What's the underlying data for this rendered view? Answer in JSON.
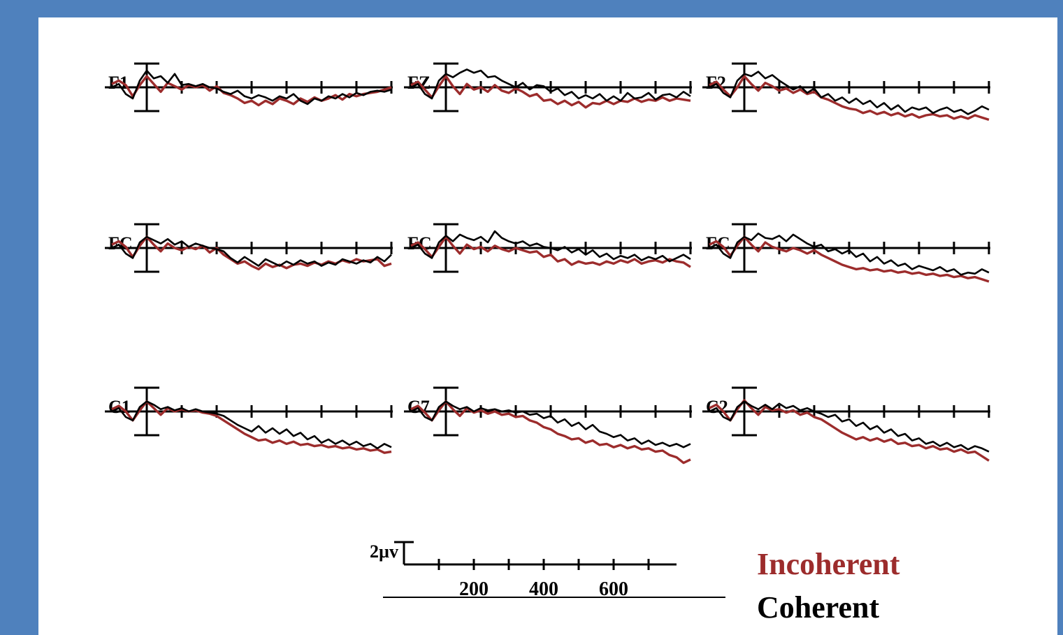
{
  "chart_data": {
    "type": "line",
    "xlim": [
      -100,
      700
    ],
    "x_ticks": [
      100,
      200,
      300,
      400,
      500,
      600,
      700
    ],
    "scale_bar": {
      "label": "2µv",
      "value_uv": 2,
      "tick_labels": [
        "200",
        "400",
        "600"
      ]
    },
    "colors": {
      "Incoherent": "#9c2c2c",
      "Coherent": "#000000"
    },
    "legend": {
      "position": "bottom-right",
      "entries": [
        "Incoherent",
        "Coherent"
      ]
    },
    "x": [
      -100,
      -80,
      -60,
      -40,
      -20,
      0,
      20,
      40,
      60,
      80,
      100,
      120,
      140,
      160,
      180,
      200,
      220,
      240,
      260,
      280,
      300,
      320,
      340,
      360,
      380,
      400,
      420,
      440,
      460,
      480,
      500,
      520,
      540,
      560,
      580,
      600,
      620,
      640,
      660,
      680,
      700
    ],
    "panels": [
      {
        "label": "F1",
        "series": [
          {
            "name": "Coherent",
            "values": [
              0.0,
              0.3,
              -0.6,
              -1.0,
              0.6,
              1.5,
              0.8,
              1.0,
              0.4,
              1.2,
              0.2,
              0.3,
              0.1,
              0.3,
              0.0,
              -0.1,
              -0.4,
              -0.6,
              -0.3,
              -0.8,
              -1.0,
              -0.7,
              -0.9,
              -1.2,
              -0.8,
              -1.0,
              -0.6,
              -1.2,
              -1.5,
              -1.0,
              -1.2,
              -0.8,
              -1.0,
              -0.6,
              -0.9,
              -0.5,
              -0.7,
              -0.4,
              -0.3,
              -0.4,
              -0.2
            ]
          },
          {
            "name": "Incoherent",
            "values": [
              0.3,
              0.6,
              0.2,
              -0.8,
              0.2,
              1.0,
              0.3,
              -0.4,
              0.4,
              0.1,
              -0.2,
              0.2,
              0.0,
              0.2,
              -0.3,
              0.1,
              -0.5,
              -0.7,
              -1.0,
              -1.4,
              -1.2,
              -1.6,
              -1.2,
              -1.5,
              -1.0,
              -1.2,
              -1.5,
              -1.0,
              -1.3,
              -0.9,
              -1.2,
              -1.0,
              -0.7,
              -1.1,
              -0.6,
              -0.8,
              -0.6,
              -0.5,
              -0.4,
              -0.2,
              0.0
            ]
          }
        ]
      },
      {
        "label": "FZ",
        "series": [
          {
            "name": "Coherent",
            "values": [
              0.0,
              0.3,
              -0.6,
              -1.0,
              0.6,
              1.2,
              0.9,
              1.3,
              1.6,
              1.3,
              1.5,
              0.9,
              1.0,
              0.6,
              0.3,
              0.0,
              0.4,
              -0.2,
              0.2,
              0.1,
              -0.4,
              -0.1,
              -0.7,
              -0.4,
              -1.0,
              -0.7,
              -1.0,
              -0.6,
              -1.2,
              -0.8,
              -1.2,
              -0.5,
              -1.0,
              -0.9,
              -0.5,
              -1.1,
              -0.7,
              -0.6,
              -0.9,
              -0.4,
              -0.8
            ]
          },
          {
            "name": "Incoherent",
            "values": [
              0.2,
              0.5,
              -0.2,
              -0.9,
              0.1,
              1.0,
              0.1,
              -0.6,
              0.3,
              -0.2,
              0.0,
              -0.4,
              0.2,
              -0.3,
              -0.5,
              -0.1,
              -0.4,
              -0.8,
              -0.6,
              -1.2,
              -1.1,
              -1.5,
              -1.2,
              -1.6,
              -1.3,
              -1.8,
              -1.4,
              -1.5,
              -1.2,
              -1.5,
              -1.2,
              -1.3,
              -1.0,
              -1.3,
              -1.1,
              -1.2,
              -0.9,
              -1.2,
              -1.0,
              -1.1,
              -1.2
            ]
          }
        ]
      },
      {
        "label": "F2",
        "series": [
          {
            "name": "Coherent",
            "values": [
              0.0,
              0.3,
              -0.5,
              -0.9,
              0.6,
              1.2,
              1.0,
              1.4,
              0.8,
              1.1,
              0.6,
              0.2,
              -0.2,
              0.1,
              -0.5,
              -0.1,
              -0.9,
              -0.6,
              -1.2,
              -0.9,
              -1.4,
              -1.0,
              -1.5,
              -1.2,
              -1.8,
              -1.4,
              -2.0,
              -1.6,
              -2.2,
              -1.8,
              -2.0,
              -1.8,
              -2.3,
              -2.0,
              -1.8,
              -2.2,
              -2.0,
              -2.4,
              -2.1,
              -1.7,
              -2.0
            ]
          },
          {
            "name": "Incoherent",
            "values": [
              0.2,
              0.5,
              -0.2,
              -0.8,
              0.0,
              1.0,
              0.3,
              -0.3,
              0.4,
              0.1,
              -0.3,
              -0.1,
              -0.5,
              -0.2,
              -0.6,
              -0.4,
              -0.9,
              -1.1,
              -1.4,
              -1.7,
              -1.9,
              -2.0,
              -2.3,
              -2.1,
              -2.4,
              -2.2,
              -2.5,
              -2.3,
              -2.6,
              -2.4,
              -2.7,
              -2.5,
              -2.4,
              -2.6,
              -2.5,
              -2.8,
              -2.6,
              -2.8,
              -2.5,
              -2.7,
              -2.9
            ]
          }
        ]
      },
      {
        "label": "FC",
        "series": [
          {
            "name": "Coherent",
            "values": [
              0.0,
              0.3,
              -0.5,
              -0.9,
              0.5,
              1.0,
              0.7,
              0.4,
              0.8,
              0.3,
              0.6,
              0.1,
              0.4,
              0.2,
              0.0,
              -0.1,
              -0.3,
              -0.9,
              -1.3,
              -0.8,
              -1.2,
              -1.6,
              -1.0,
              -1.3,
              -1.6,
              -1.2,
              -1.5,
              -1.1,
              -1.4,
              -1.2,
              -1.6,
              -1.3,
              -1.5,
              -1.0,
              -1.2,
              -1.4,
              -1.1,
              -1.3,
              -0.8,
              -1.2,
              -0.6
            ]
          },
          {
            "name": "Incoherent",
            "values": [
              0.3,
              0.6,
              0.1,
              -0.8,
              0.2,
              1.0,
              0.3,
              -0.3,
              0.4,
              0.0,
              -0.2,
              0.1,
              -0.1,
              0.2,
              -0.4,
              0.0,
              -0.6,
              -1.0,
              -1.4,
              -1.2,
              -1.6,
              -1.9,
              -1.4,
              -1.7,
              -1.5,
              -1.8,
              -1.5,
              -1.4,
              -1.6,
              -1.3,
              -1.5,
              -1.2,
              -1.4,
              -1.1,
              -1.3,
              -1.0,
              -1.2,
              -1.1,
              -1.0,
              -1.6,
              -1.4
            ]
          }
        ]
      },
      {
        "label": "FC",
        "series": [
          {
            "name": "Coherent",
            "values": [
              0.0,
              0.3,
              -0.5,
              -0.9,
              0.5,
              1.1,
              0.6,
              1.2,
              0.9,
              0.7,
              1.0,
              0.5,
              1.5,
              0.9,
              0.6,
              0.4,
              0.6,
              0.2,
              0.4,
              0.1,
              0.0,
              -0.2,
              0.1,
              -0.4,
              -0.1,
              -0.6,
              -0.2,
              -0.8,
              -0.5,
              -1.0,
              -0.7,
              -0.9,
              -0.6,
              -1.1,
              -0.8,
              -1.0,
              -0.7,
              -1.2,
              -0.9,
              -0.6,
              -1.0
            ]
          },
          {
            "name": "Incoherent",
            "values": [
              0.2,
              0.5,
              -0.1,
              -0.8,
              0.1,
              1.0,
              0.2,
              -0.5,
              0.3,
              -0.1,
              0.1,
              -0.3,
              0.2,
              -0.1,
              -0.3,
              0.0,
              -0.2,
              -0.4,
              -0.3,
              -0.8,
              -0.6,
              -1.2,
              -1.0,
              -1.5,
              -1.2,
              -1.4,
              -1.3,
              -1.5,
              -1.2,
              -1.4,
              -1.1,
              -1.3,
              -1.0,
              -1.4,
              -1.2,
              -1.1,
              -1.3,
              -1.0,
              -1.2,
              -1.3,
              -1.7
            ]
          }
        ]
      },
      {
        "label": "FC",
        "series": [
          {
            "name": "Coherent",
            "values": [
              0.0,
              0.3,
              -0.5,
              -0.9,
              0.5,
              1.0,
              0.7,
              1.3,
              0.9,
              0.8,
              1.1,
              0.6,
              1.2,
              0.8,
              0.4,
              0.1,
              0.3,
              -0.3,
              -0.1,
              -0.5,
              -0.2,
              -0.8,
              -0.5,
              -1.2,
              -0.8,
              -1.4,
              -1.1,
              -1.6,
              -1.4,
              -1.9,
              -1.6,
              -1.8,
              -2.0,
              -1.7,
              -2.1,
              -1.9,
              -2.4,
              -2.2,
              -2.3,
              -1.9,
              -2.2
            ]
          },
          {
            "name": "Incoherent",
            "values": [
              0.3,
              0.6,
              0.1,
              -0.7,
              0.2,
              1.0,
              0.3,
              -0.3,
              0.5,
              0.1,
              -0.1,
              -0.3,
              0.0,
              -0.2,
              -0.5,
              -0.2,
              -0.6,
              -0.9,
              -1.2,
              -1.5,
              -1.7,
              -1.9,
              -1.8,
              -2.0,
              -1.9,
              -2.1,
              -2.0,
              -2.2,
              -2.1,
              -2.3,
              -2.2,
              -2.4,
              -2.3,
              -2.5,
              -2.4,
              -2.6,
              -2.5,
              -2.7,
              -2.6,
              -2.8,
              -3.0
            ]
          }
        ]
      },
      {
        "label": "C1",
        "series": [
          {
            "name": "Coherent",
            "values": [
              0.0,
              0.3,
              -0.5,
              -0.8,
              0.4,
              0.9,
              0.6,
              0.2,
              0.4,
              0.1,
              0.3,
              0.0,
              0.2,
              0.0,
              -0.1,
              -0.2,
              -0.4,
              -0.8,
              -1.2,
              -1.5,
              -1.8,
              -1.3,
              -1.9,
              -1.5,
              -2.0,
              -1.6,
              -2.2,
              -1.9,
              -2.5,
              -2.2,
              -2.8,
              -2.5,
              -2.9,
              -2.6,
              -3.0,
              -2.7,
              -3.1,
              -2.9,
              -3.3,
              -2.9,
              -3.2
            ]
          },
          {
            "name": "Incoherent",
            "values": [
              0.2,
              0.5,
              0.0,
              -0.8,
              0.1,
              0.9,
              0.3,
              -0.3,
              0.3,
              0.0,
              0.2,
              0.0,
              0.1,
              -0.1,
              -0.2,
              -0.4,
              -0.8,
              -1.2,
              -1.6,
              -2.0,
              -2.3,
              -2.6,
              -2.5,
              -2.8,
              -2.6,
              -2.9,
              -2.7,
              -3.0,
              -2.9,
              -3.1,
              -3.0,
              -3.2,
              -3.1,
              -3.3,
              -3.2,
              -3.4,
              -3.3,
              -3.5,
              -3.4,
              -3.7,
              -3.6
            ]
          }
        ]
      },
      {
        "label": "C7",
        "series": [
          {
            "name": "Coherent",
            "values": [
              0.0,
              0.3,
              -0.5,
              -0.8,
              0.4,
              0.9,
              0.5,
              0.2,
              0.4,
              0.0,
              0.3,
              0.1,
              0.2,
              0.0,
              0.1,
              -0.1,
              0.0,
              -0.3,
              -0.2,
              -0.6,
              -0.4,
              -1.0,
              -0.7,
              -1.3,
              -1.0,
              -1.6,
              -1.2,
              -1.8,
              -2.0,
              -2.3,
              -2.1,
              -2.6,
              -2.4,
              -2.9,
              -2.6,
              -3.0,
              -2.8,
              -3.1,
              -2.9,
              -3.2,
              -2.9
            ]
          },
          {
            "name": "Incoherent",
            "values": [
              0.2,
              0.5,
              -0.1,
              -0.8,
              0.1,
              0.9,
              0.2,
              -0.4,
              0.3,
              -0.1,
              0.1,
              -0.2,
              0.0,
              -0.3,
              -0.2,
              -0.5,
              -0.4,
              -0.8,
              -1.0,
              -1.4,
              -1.6,
              -2.0,
              -2.2,
              -2.5,
              -2.4,
              -2.8,
              -2.6,
              -3.0,
              -2.9,
              -3.2,
              -3.0,
              -3.3,
              -3.1,
              -3.4,
              -3.3,
              -3.6,
              -3.5,
              -3.9,
              -4.1,
              -4.6,
              -4.3
            ]
          }
        ]
      },
      {
        "label": "C2",
        "series": [
          {
            "name": "Coherent",
            "values": [
              0.0,
              0.3,
              -0.5,
              -0.8,
              0.4,
              0.9,
              0.5,
              0.2,
              0.6,
              0.2,
              0.7,
              0.3,
              0.5,
              0.1,
              0.3,
              0.0,
              -0.2,
              -0.5,
              -0.3,
              -0.9,
              -0.7,
              -1.3,
              -1.0,
              -1.6,
              -1.3,
              -1.9,
              -1.6,
              -2.2,
              -2.0,
              -2.6,
              -2.4,
              -2.9,
              -2.7,
              -3.1,
              -2.8,
              -3.2,
              -3.0,
              -3.4,
              -3.1,
              -3.3,
              -3.6
            ]
          },
          {
            "name": "Incoherent",
            "values": [
              0.3,
              0.6,
              0.0,
              -0.8,
              0.2,
              1.0,
              0.3,
              -0.3,
              0.4,
              0.1,
              0.2,
              -0.1,
              0.1,
              -0.3,
              -0.1,
              -0.5,
              -0.7,
              -1.1,
              -1.5,
              -1.9,
              -2.2,
              -2.5,
              -2.3,
              -2.6,
              -2.4,
              -2.7,
              -2.5,
              -2.9,
              -2.8,
              -3.1,
              -3.0,
              -3.3,
              -3.1,
              -3.4,
              -3.3,
              -3.6,
              -3.4,
              -3.7,
              -3.6,
              -4.0,
              -4.4
            ]
          }
        ]
      }
    ]
  }
}
